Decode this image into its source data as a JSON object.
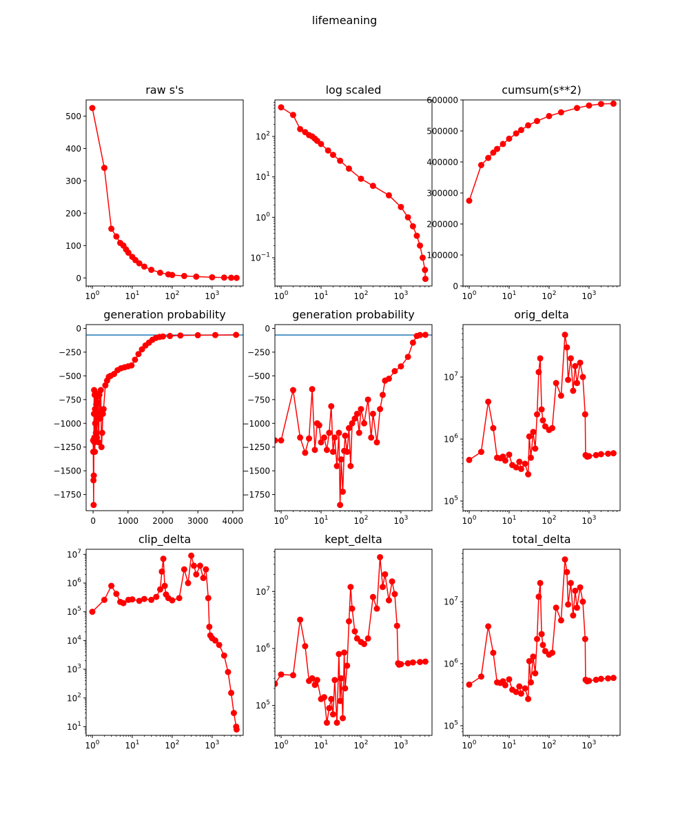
{
  "figure": {
    "suptitle": "lifemeaning"
  },
  "colors": {
    "series": "#ff0000",
    "reference_line": "#1f77b4"
  },
  "chart_data": [
    {
      "title": "raw s's",
      "type": "line",
      "xscale": "log",
      "yscale": "linear",
      "xlim": [
        0.7,
        6000
      ],
      "ylim": [
        -25,
        550
      ],
      "xticks": [
        1,
        10,
        100,
        1000
      ],
      "xtick_labels": [
        {
          "base": "10",
          "exp": "0"
        },
        {
          "base": "10",
          "exp": "1"
        },
        {
          "base": "10",
          "exp": "2"
        },
        {
          "base": "10",
          "exp": "3"
        }
      ],
      "yticks": [
        0,
        100,
        200,
        300,
        400,
        500
      ],
      "ytick_labels": [
        "0",
        "100",
        "200",
        "300",
        "400",
        "500"
      ],
      "x": [
        1,
        2,
        3,
        4,
        5,
        6,
        7,
        8,
        10,
        12,
        15,
        20,
        30,
        50,
        80,
        100,
        200,
        400,
        1000,
        2000,
        3000,
        4096
      ],
      "y": [
        525,
        340,
        152,
        128,
        108,
        100,
        88,
        78,
        65,
        55,
        45,
        35,
        25,
        16,
        11,
        9,
        6,
        4,
        2,
        1,
        0.5,
        0.03
      ]
    },
    {
      "title": "log scaled",
      "type": "line",
      "xscale": "log",
      "yscale": "log",
      "xlim": [
        0.7,
        6000
      ],
      "ylim": [
        0.02,
        800
      ],
      "xticks": [
        1,
        10,
        100,
        1000
      ],
      "xtick_labels": [
        {
          "base": "10",
          "exp": "0"
        },
        {
          "base": "10",
          "exp": "1"
        },
        {
          "base": "10",
          "exp": "2"
        },
        {
          "base": "10",
          "exp": "3"
        }
      ],
      "yticks": [
        0.1,
        1,
        10,
        100
      ],
      "ytick_labels": [
        {
          "base": "10",
          "exp": "−1"
        },
        {
          "base": "10",
          "exp": "0"
        },
        {
          "base": "10",
          "exp": "1"
        },
        {
          "base": "10",
          "exp": "2"
        }
      ],
      "x": [
        1,
        2,
        3,
        4,
        5,
        6,
        7,
        8,
        10,
        15,
        20,
        30,
        50,
        100,
        200,
        500,
        1000,
        1500,
        2000,
        2500,
        3000,
        3500,
        4000,
        4096
      ],
      "y": [
        525,
        340,
        152,
        128,
        108,
        100,
        88,
        78,
        65,
        45,
        35,
        25,
        16,
        9,
        6,
        3.5,
        1.8,
        1,
        0.6,
        0.35,
        0.2,
        0.1,
        0.05,
        0.03
      ]
    },
    {
      "title": "cumsum(s**2)",
      "type": "line",
      "xscale": "log",
      "yscale": "linear",
      "xlim": [
        0.7,
        6000
      ],
      "ylim": [
        0,
        600000
      ],
      "xticks": [
        1,
        10,
        100,
        1000
      ],
      "xtick_labels": [
        {
          "base": "10",
          "exp": "0"
        },
        {
          "base": "10",
          "exp": "1"
        },
        {
          "base": "10",
          "exp": "2"
        },
        {
          "base": "10",
          "exp": "3"
        }
      ],
      "yticks": [
        0,
        100000,
        200000,
        300000,
        400000,
        500000,
        600000
      ],
      "ytick_labels": [
        "0",
        "100000",
        "200000",
        "300000",
        "400000",
        "500000",
        "600000"
      ],
      "x": [
        1,
        2,
        3,
        4,
        5,
        7,
        10,
        15,
        20,
        30,
        50,
        100,
        200,
        500,
        1000,
        2000,
        4096
      ],
      "y": [
        275000,
        390000,
        413000,
        430000,
        442000,
        458000,
        475000,
        492000,
        503000,
        518000,
        532000,
        548000,
        560000,
        574000,
        582000,
        587000,
        588000
      ]
    },
    {
      "title": "generation probability",
      "type": "line",
      "xscale": "linear",
      "yscale": "linear",
      "xlim": [
        -200,
        4300
      ],
      "ylim": [
        -1920,
        40
      ],
      "xticks": [
        0,
        1000,
        2000,
        3000,
        4000
      ],
      "xtick_labels": [
        "0",
        "1000",
        "2000",
        "3000",
        "4000"
      ],
      "yticks": [
        -1750,
        -1500,
        -1250,
        -1000,
        -750,
        -500,
        -250,
        0
      ],
      "ytick_labels": [
        "−1750",
        "−1500",
        "−1250",
        "−1000",
        "−750",
        "−500",
        "−250",
        "0"
      ],
      "hline": -70,
      "x": [
        1,
        5,
        10,
        15,
        20,
        25,
        30,
        35,
        40,
        45,
        50,
        55,
        60,
        70,
        80,
        90,
        100,
        110,
        120,
        140,
        160,
        180,
        200,
        220,
        240,
        260,
        280,
        300,
        350,
        400,
        450,
        500,
        600,
        700,
        800,
        900,
        1000,
        1100,
        1200,
        1300,
        1400,
        1500,
        1600,
        1700,
        1800,
        1900,
        2000,
        2200,
        2500,
        3000,
        3500,
        4096
      ],
      "y": [
        -1180,
        -1300,
        -1600,
        -1860,
        -1550,
        -900,
        -650,
        -1150,
        -1200,
        -700,
        -1300,
        -850,
        -1000,
        -680,
        -1100,
        -800,
        -720,
        -1150,
        -900,
        -780,
        -1200,
        -700,
        -950,
        -650,
        -1250,
        -1100,
        -900,
        -850,
        -600,
        -550,
        -510,
        -500,
        -480,
        -440,
        -420,
        -410,
        -400,
        -390,
        -330,
        -270,
        -220,
        -180,
        -150,
        -120,
        -100,
        -90,
        -85,
        -80,
        -75,
        -72,
        -70,
        -68
      ]
    },
    {
      "title": "generation probability",
      "type": "line",
      "xscale": "log",
      "yscale": "linear",
      "xlim": [
        0.7,
        6000
      ],
      "ylim": [
        -1920,
        40
      ],
      "xticks": [
        1,
        10,
        100,
        1000
      ],
      "xtick_labels": [
        {
          "base": "10",
          "exp": "0"
        },
        {
          "base": "10",
          "exp": "1"
        },
        {
          "base": "10",
          "exp": "2"
        },
        {
          "base": "10",
          "exp": "3"
        }
      ],
      "yticks": [
        -1750,
        -1500,
        -1250,
        -1000,
        -750,
        -500,
        -250,
        0
      ],
      "ytick_labels": [
        "−1750",
        "−1500",
        "−1250",
        "−1000",
        "−750",
        "−500",
        "−250",
        "0"
      ],
      "hline": -70,
      "x": [
        0.7,
        1,
        2,
        3,
        4,
        5,
        6,
        7,
        8,
        9,
        10,
        12,
        14,
        16,
        18,
        20,
        22,
        25,
        28,
        30,
        32,
        35,
        38,
        40,
        45,
        50,
        55,
        60,
        70,
        80,
        90,
        100,
        120,
        150,
        180,
        200,
        250,
        300,
        350,
        400,
        500,
        700,
        1000,
        1500,
        2000,
        2500,
        3000,
        4096
      ],
      "y": [
        -1180,
        -1180,
        -650,
        -1150,
        -1310,
        -1160,
        -640,
        -1280,
        -1000,
        -1020,
        -1200,
        -1150,
        -1280,
        -1100,
        -820,
        -1300,
        -1150,
        -1450,
        -1100,
        -1860,
        -1380,
        -1720,
        -1290,
        -1130,
        -1300,
        -1050,
        -1450,
        -1000,
        -950,
        -900,
        -1100,
        -850,
        -1000,
        -750,
        -1150,
        -900,
        -1200,
        -850,
        -700,
        -550,
        -530,
        -450,
        -400,
        -300,
        -150,
        -80,
        -70,
        -68
      ]
    },
    {
      "title": "orig_delta",
      "type": "line",
      "xscale": "log",
      "yscale": "log",
      "xlim": [
        0.7,
        6000
      ],
      "ylim": [
        70000,
        70000000
      ],
      "xticks": [
        1,
        10,
        100,
        1000
      ],
      "xtick_labels": [
        {
          "base": "10",
          "exp": "0"
        },
        {
          "base": "10",
          "exp": "1"
        },
        {
          "base": "10",
          "exp": "2"
        },
        {
          "base": "10",
          "exp": "3"
        }
      ],
      "yticks": [
        100000,
        1000000,
        10000000
      ],
      "ytick_labels": [
        {
          "base": "10",
          "exp": "5"
        },
        {
          "base": "10",
          "exp": "6"
        },
        {
          "base": "10",
          "exp": "7"
        }
      ],
      "x": [
        1,
        2,
        3,
        4,
        5,
        6,
        7,
        8,
        10,
        12,
        15,
        18,
        20,
        25,
        30,
        32,
        35,
        40,
        45,
        50,
        55,
        60,
        65,
        70,
        80,
        100,
        120,
        150,
        200,
        250,
        280,
        300,
        350,
        400,
        450,
        500,
        600,
        700,
        800,
        820,
        900,
        1000,
        1500,
        2000,
        3000,
        4096
      ],
      "y": [
        460000,
        620000,
        4000000,
        1500000,
        500000,
        490000,
        520000,
        450000,
        560000,
        380000,
        350000,
        430000,
        330000,
        400000,
        270000,
        1100000,
        500000,
        1300000,
        700000,
        2500000,
        12000000,
        20000000,
        3000000,
        2000000,
        1600000,
        1400000,
        1500000,
        8000000,
        5000000,
        48000000,
        30000000,
        9000000,
        20000000,
        6000000,
        15000000,
        8000000,
        17000000,
        10000000,
        2500000,
        550000,
        520000,
        530000,
        550000,
        570000,
        580000,
        590000
      ]
    },
    {
      "title": "clip_delta",
      "type": "line",
      "xscale": "log",
      "yscale": "log",
      "xlim": [
        0.7,
        6000
      ],
      "ylim": [
        5,
        15000000
      ],
      "xticks": [
        1,
        10,
        100,
        1000
      ],
      "xtick_labels": [
        {
          "base": "10",
          "exp": "0"
        },
        {
          "base": "10",
          "exp": "1"
        },
        {
          "base": "10",
          "exp": "2"
        },
        {
          "base": "10",
          "exp": "3"
        }
      ],
      "yticks": [
        10,
        100,
        1000,
        10000,
        100000,
        1000000,
        10000000
      ],
      "ytick_labels": [
        {
          "base": "10",
          "exp": "1"
        },
        {
          "base": "10",
          "exp": "2"
        },
        {
          "base": "10",
          "exp": "3"
        },
        {
          "base": "10",
          "exp": "4"
        },
        {
          "base": "10",
          "exp": "5"
        },
        {
          "base": "10",
          "exp": "6"
        },
        {
          "base": "10",
          "exp": "7"
        }
      ],
      "x": [
        1,
        2,
        3,
        4,
        5,
        6,
        8,
        10,
        15,
        20,
        30,
        40,
        50,
        55,
        60,
        65,
        70,
        80,
        100,
        150,
        200,
        250,
        300,
        350,
        400,
        500,
        600,
        700,
        800,
        850,
        900,
        1000,
        1200,
        1500,
        2000,
        2500,
        3000,
        3500,
        4000,
        4096
      ],
      "y": [
        100000,
        260000,
        800000,
        420000,
        220000,
        200000,
        260000,
        270000,
        240000,
        280000,
        260000,
        330000,
        600000,
        2500000,
        7000000,
        800000,
        400000,
        300000,
        250000,
        300000,
        3000000,
        1000000,
        9000000,
        4000000,
        2000000,
        4000000,
        1500000,
        3000000,
        300000,
        30000,
        15000,
        12000,
        10000,
        7000,
        3000,
        800,
        150,
        30,
        10,
        8
      ]
    },
    {
      "title": "kept_delta",
      "type": "line",
      "xscale": "log",
      "yscale": "log",
      "xlim": [
        0.7,
        6000
      ],
      "ylim": [
        30000,
        55000000
      ],
      "xticks": [
        1,
        10,
        100,
        1000
      ],
      "xtick_labels": [
        {
          "base": "10",
          "exp": "0"
        },
        {
          "base": "10",
          "exp": "1"
        },
        {
          "base": "10",
          "exp": "2"
        },
        {
          "base": "10",
          "exp": "3"
        }
      ],
      "yticks": [
        100000,
        1000000,
        10000000
      ],
      "ytick_labels": [
        {
          "base": "10",
          "exp": "5"
        },
        {
          "base": "10",
          "exp": "6"
        },
        {
          "base": "10",
          "exp": "7"
        }
      ],
      "x": [
        0.7,
        1,
        2,
        3,
        4,
        5,
        6,
        7,
        8,
        10,
        12,
        14,
        16,
        18,
        20,
        22,
        25,
        28,
        30,
        32,
        35,
        38,
        40,
        45,
        50,
        55,
        60,
        70,
        80,
        100,
        120,
        150,
        200,
        250,
        300,
        350,
        400,
        500,
        600,
        700,
        800,
        850,
        900,
        1000,
        1500,
        2000,
        3000,
        4096
      ],
      "y": [
        240000,
        350000,
        340000,
        3200000,
        1100000,
        270000,
        300000,
        230000,
        280000,
        130000,
        140000,
        50000,
        90000,
        130000,
        70000,
        280000,
        50000,
        800000,
        120000,
        300000,
        60000,
        850000,
        200000,
        500000,
        3000000,
        12000000,
        5000000,
        2000000,
        1500000,
        1300000,
        1200000,
        1500000,
        8000000,
        5000000,
        40000000,
        12000000,
        20000000,
        7000000,
        15000000,
        9000000,
        2500000,
        550000,
        520000,
        530000,
        550000,
        570000,
        580000,
        590000
      ]
    },
    {
      "title": "total_delta",
      "type": "line",
      "xscale": "log",
      "yscale": "log",
      "xlim": [
        0.7,
        6000
      ],
      "ylim": [
        70000,
        70000000
      ],
      "xticks": [
        1,
        10,
        100,
        1000
      ],
      "xtick_labels": [
        {
          "base": "10",
          "exp": "0"
        },
        {
          "base": "10",
          "exp": "1"
        },
        {
          "base": "10",
          "exp": "2"
        },
        {
          "base": "10",
          "exp": "3"
        }
      ],
      "yticks": [
        100000,
        1000000,
        10000000
      ],
      "ytick_labels": [
        {
          "base": "10",
          "exp": "5"
        },
        {
          "base": "10",
          "exp": "6"
        },
        {
          "base": "10",
          "exp": "7"
        }
      ],
      "x": [
        1,
        2,
        3,
        4,
        5,
        6,
        7,
        8,
        10,
        12,
        15,
        18,
        20,
        25,
        30,
        32,
        35,
        40,
        45,
        50,
        55,
        60,
        65,
        70,
        80,
        100,
        120,
        150,
        200,
        250,
        280,
        300,
        350,
        400,
        450,
        500,
        600,
        700,
        800,
        820,
        900,
        1000,
        1500,
        2000,
        3000,
        4096
      ],
      "y": [
        460000,
        620000,
        4000000,
        1500000,
        500000,
        490000,
        520000,
        450000,
        560000,
        380000,
        350000,
        430000,
        330000,
        400000,
        270000,
        1100000,
        500000,
        1300000,
        700000,
        2500000,
        12000000,
        20000000,
        3000000,
        2000000,
        1600000,
        1400000,
        1500000,
        8000000,
        5000000,
        48000000,
        30000000,
        9000000,
        20000000,
        6000000,
        15000000,
        8000000,
        17000000,
        10000000,
        2500000,
        550000,
        520000,
        530000,
        550000,
        570000,
        580000,
        590000
      ]
    }
  ]
}
